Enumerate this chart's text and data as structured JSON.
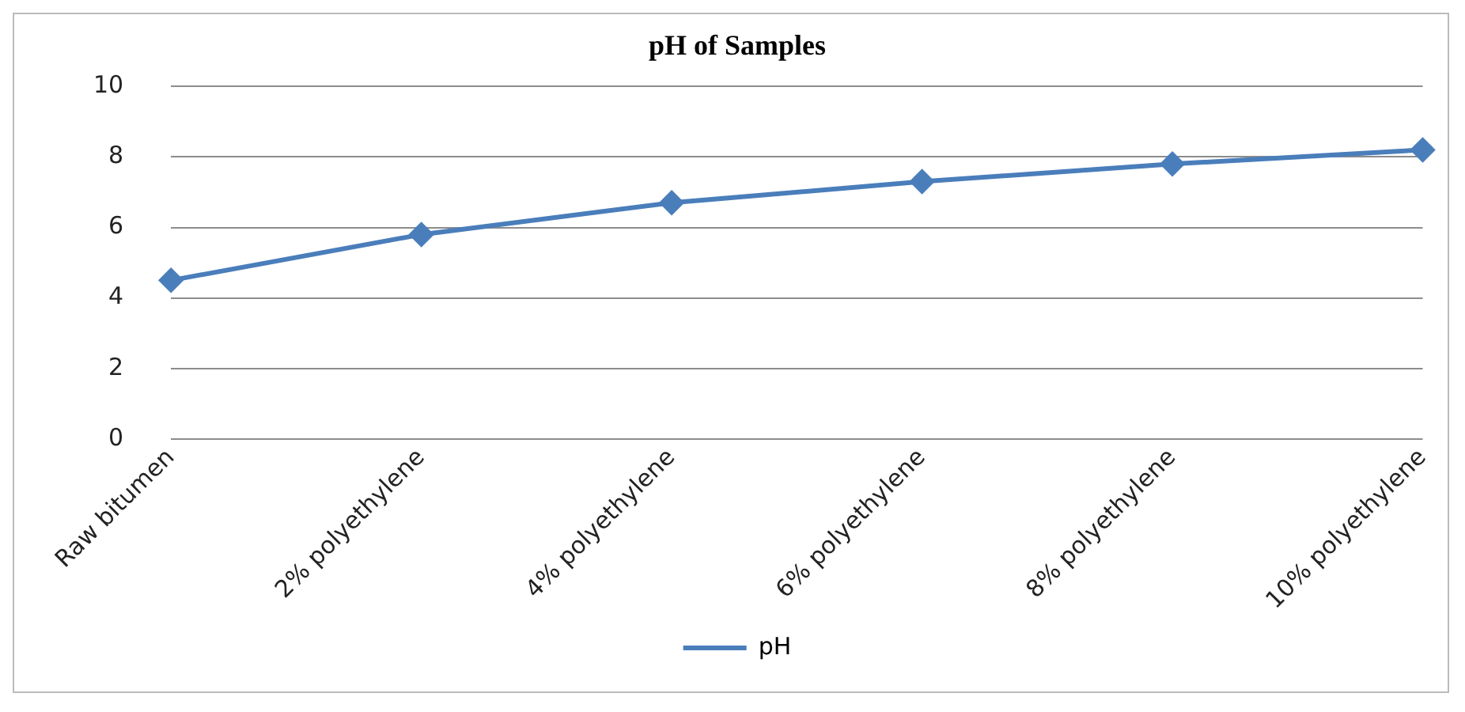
{
  "chart_data": {
    "type": "line",
    "title": "pH of Samples",
    "categories": [
      "Raw bitumen",
      "2% polyethylene",
      "4% polyethylene",
      "6% polyethylene",
      "8% polyethylene",
      "10% polyethylene"
    ],
    "series": [
      {
        "name": "pH",
        "color": "#4a7ebb",
        "values": [
          4.5,
          5.8,
          6.7,
          7.3,
          7.8,
          8.2
        ]
      }
    ],
    "ylim": [
      0,
      10
    ],
    "yticks": [
      0,
      2,
      4,
      6,
      8,
      10
    ],
    "grid": "y",
    "legend": "bottom",
    "marker": "diamond",
    "line_style": "solid"
  }
}
